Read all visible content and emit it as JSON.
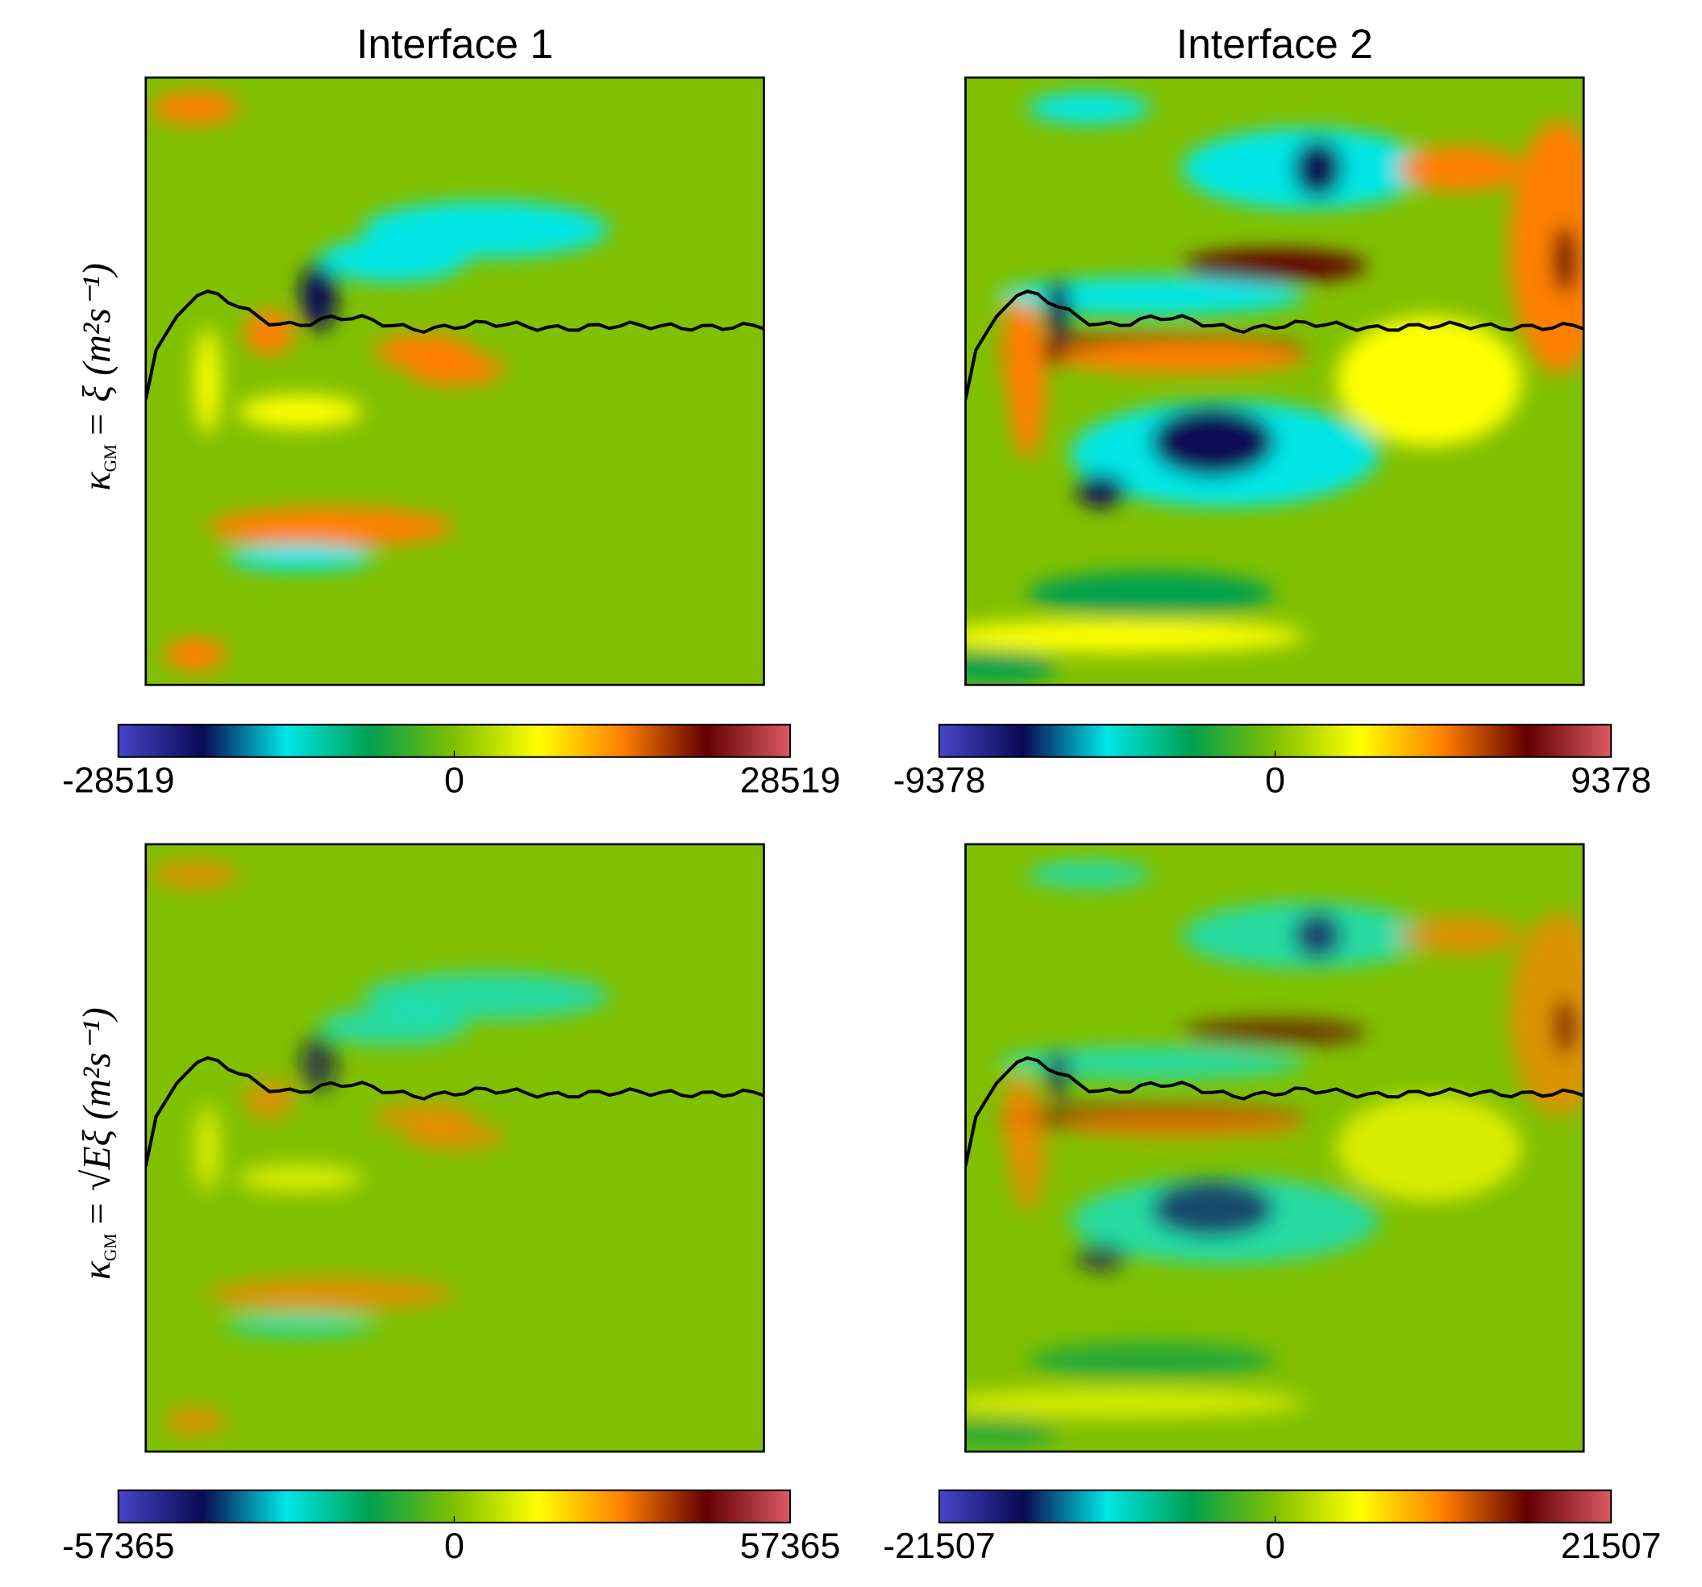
{
  "chart_data": [
    {
      "type": "heatmap",
      "title": "Interface 1",
      "ylabel_symbol": "κ",
      "ylabel_subscript": "GM",
      "ylabel_rest": "= ξ (m²s⁻¹)",
      "clim": [
        -28519,
        28519
      ],
      "cticks": [
        -28519,
        0,
        28519
      ],
      "colormap": [
        "#4646c8",
        "#0a0a55",
        "#00e6e6",
        "#00a050",
        "#80c000",
        "#ffff00",
        "#ff8000",
        "#640000",
        "#dc5a64"
      ]
    },
    {
      "type": "heatmap",
      "title": "Interface 2",
      "clim": [
        -9378,
        9378
      ],
      "cticks": [
        -9378,
        0,
        9378
      ],
      "colormap": [
        "#4646c8",
        "#0a0a55",
        "#00e6e6",
        "#00a050",
        "#80c000",
        "#ffff00",
        "#ff8000",
        "#640000",
        "#dc5a64"
      ]
    },
    {
      "type": "heatmap",
      "ylabel_symbol": "κ",
      "ylabel_subscript": "GM",
      "ylabel_rest": "= √Eξ (m²s⁻¹)",
      "clim": [
        -57365,
        57365
      ],
      "cticks": [
        -57365,
        0,
        57365
      ],
      "colormap": [
        "#4646c8",
        "#0a0a55",
        "#00e6e6",
        "#00a050",
        "#80c000",
        "#ffff00",
        "#ff8000",
        "#640000",
        "#dc5a64"
      ]
    },
    {
      "type": "heatmap",
      "clim": [
        -21507,
        21507
      ],
      "cticks": [
        -21507,
        0,
        21507
      ],
      "colormap": [
        "#4646c8",
        "#0a0a55",
        "#00e6e6",
        "#00a050",
        "#80c000",
        "#ffff00",
        "#ff8000",
        "#640000",
        "#dc5a64"
      ]
    }
  ]
}
